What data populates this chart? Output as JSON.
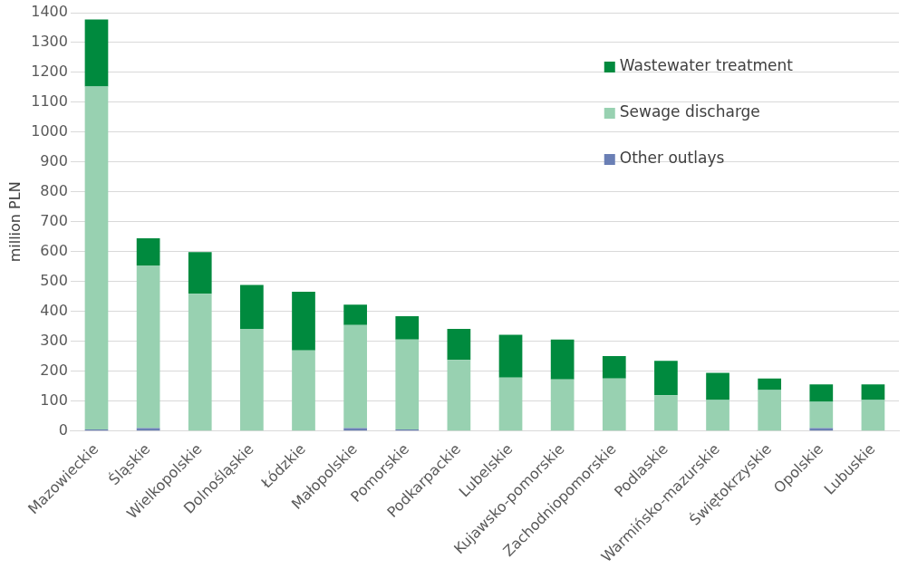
{
  "chart_data": {
    "type": "bar",
    "stacked": true,
    "ylabel": "million PLN",
    "categories": [
      "Mazowieckie",
      "Śląskie",
      "Wielkopolskie",
      "Dolnośląskie",
      "Łódzkie",
      "Małopolskie",
      "Pomorskie",
      "Podkarpackie",
      "Lubelskie",
      "Kujawsko-pomorskie",
      "Zachodniopomorskie",
      "Podlaskie",
      "Warmińsko-mazurskie",
      "Świętokrzyskie",
      "Opolskie",
      "Lubuskie"
    ],
    "series": [
      {
        "name": "Other outlays",
        "color": "#6a7fb5",
        "values": [
          5,
          10,
          0,
          0,
          0,
          10,
          5,
          0,
          0,
          0,
          0,
          0,
          0,
          0,
          10,
          0
        ]
      },
      {
        "name": "Sewage discharge",
        "color": "#98d1b1",
        "values": [
          1148,
          544,
          459,
          342,
          270,
          345,
          301,
          238,
          179,
          173,
          176,
          120,
          104,
          137,
          88,
          104
        ]
      },
      {
        "name": "Wastewater treatment",
        "color": "#008a3e",
        "values": [
          224,
          91,
          140,
          147,
          196,
          68,
          78,
          104,
          143,
          133,
          75,
          115,
          91,
          39,
          58,
          52
        ]
      }
    ],
    "ylim": [
      0,
      1400
    ],
    "yticks": [
      0,
      100,
      200,
      300,
      400,
      500,
      600,
      700,
      800,
      900,
      1000,
      1100,
      1200,
      1300,
      1400
    ],
    "grid": "y",
    "legend": "top right"
  }
}
